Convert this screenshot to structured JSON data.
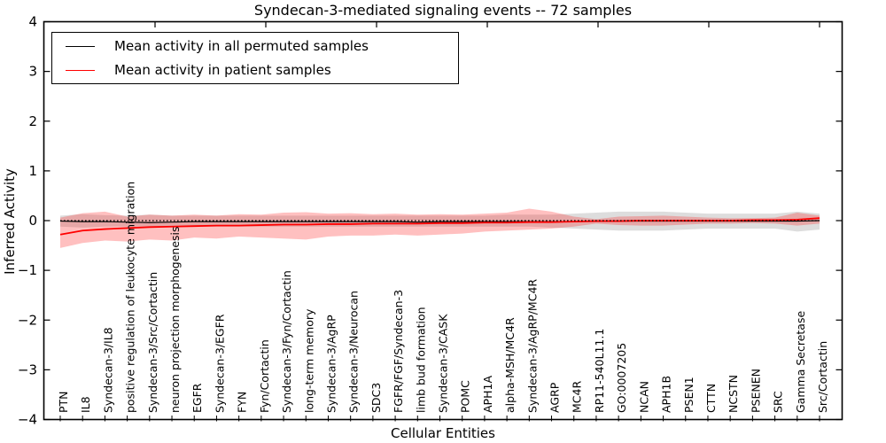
{
  "chart_data": {
    "type": "line",
    "title": "Syndecan-3-mediated signaling events -- 72 samples",
    "xlabel": "Cellular Entities",
    "ylabel": "Inferred Activity",
    "ylim": [
      -4,
      4
    ],
    "grid": false,
    "zero_reference_line": 0,
    "legend": {
      "position": "upper-left",
      "entries": [
        {
          "label": "Mean activity in all permuted samples",
          "color": "#000000"
        },
        {
          "label": "Mean activity in patient samples",
          "color": "#ff0000"
        }
      ]
    },
    "yticks": [
      {
        "value": 4,
        "label": "4"
      },
      {
        "value": 3,
        "label": "3"
      },
      {
        "value": 2,
        "label": "2"
      },
      {
        "value": 1,
        "label": "1"
      },
      {
        "value": 0,
        "label": "0"
      },
      {
        "value": -1,
        "label": "−1"
      },
      {
        "value": -2,
        "label": "−2"
      },
      {
        "value": -3,
        "label": "−3"
      },
      {
        "value": -4,
        "label": "−4"
      }
    ],
    "categories": [
      "PTN",
      "IL8",
      "Syndecan-3/IL8",
      "positive regulation of leukocyte migration",
      "Syndecan-3/Src/Cortactin",
      "neuron projection morphogenesis",
      "EGFR",
      "Syndecan-3/EGFR",
      "FYN",
      "Fyn/Cortactin",
      "Syndecan-3/Fyn/Cortactin",
      "long-term memory",
      "Syndecan-3/AgRP",
      "Syndecan-3/Neurocan",
      "SDC3",
      "FGFR/FGF/Syndecan-3",
      "limb bud formation",
      "Syndecan-3/CASK",
      "POMC",
      "APH1A",
      "alpha-MSH/MC4R",
      "Syndecan-3/AgRP/MC4R",
      "AGRP",
      "MC4R",
      "RP11-540L11.1",
      "GO:0007205",
      "NCAN",
      "APH1B",
      "PSEN1",
      "CTTN",
      "NCSTN",
      "PSENEN",
      "SRC",
      "Gamma Secretase",
      "Src/Cortactin"
    ],
    "series": [
      {
        "name": "Mean activity in all permuted samples",
        "color": "#000000",
        "line_style": "solid",
        "values": [
          -0.01,
          -0.02,
          -0.02,
          -0.03,
          -0.04,
          -0.03,
          -0.02,
          -0.02,
          -0.02,
          -0.02,
          -0.02,
          -0.02,
          -0.02,
          -0.02,
          -0.02,
          -0.02,
          -0.03,
          -0.02,
          -0.02,
          -0.02,
          -0.02,
          -0.02,
          -0.02,
          -0.02,
          -0.01,
          -0.01,
          -0.01,
          -0.01,
          -0.01,
          -0.01,
          -0.01,
          -0.01,
          -0.01,
          -0.01,
          0.0
        ]
      },
      {
        "name": "Mean activity in patient samples",
        "color": "#ff0000",
        "line_style": "solid",
        "values": [
          -0.28,
          -0.2,
          -0.17,
          -0.15,
          -0.13,
          -0.12,
          -0.11,
          -0.1,
          -0.1,
          -0.09,
          -0.08,
          -0.08,
          -0.07,
          -0.07,
          -0.06,
          -0.06,
          -0.06,
          -0.05,
          -0.05,
          -0.04,
          -0.04,
          -0.03,
          -0.03,
          -0.02,
          -0.01,
          -0.01,
          0.0,
          0.0,
          0.0,
          0.0,
          0.0,
          0.01,
          0.01,
          0.02,
          0.05
        ]
      },
      {
        "name": "zero reference",
        "color": "#000000",
        "line_style": "dotted",
        "values": [
          0,
          0,
          0,
          0,
          0,
          0,
          0,
          0,
          0,
          0,
          0,
          0,
          0,
          0,
          0,
          0,
          0,
          0,
          0,
          0,
          0,
          0,
          0,
          0,
          0,
          0,
          0,
          0,
          0,
          0,
          0,
          0,
          0,
          0,
          0
        ]
      }
    ],
    "bands": [
      {
        "name": "permuted samples activity range",
        "color": "#787878",
        "opacity": 0.25,
        "upper": [
          0.1,
          0.13,
          0.11,
          0.1,
          0.12,
          0.1,
          0.1,
          0.1,
          0.1,
          0.1,
          0.1,
          0.1,
          0.1,
          0.1,
          0.1,
          0.1,
          0.1,
          0.1,
          0.1,
          0.1,
          0.12,
          0.12,
          0.12,
          0.14,
          0.16,
          0.18,
          0.18,
          0.18,
          0.16,
          0.14,
          0.14,
          0.14,
          0.14,
          0.18,
          0.14
        ],
        "lower": [
          -0.12,
          -0.14,
          -0.12,
          -0.12,
          -0.12,
          -0.12,
          -0.12,
          -0.12,
          -0.12,
          -0.12,
          -0.12,
          -0.12,
          -0.12,
          -0.12,
          -0.12,
          -0.12,
          -0.12,
          -0.12,
          -0.12,
          -0.12,
          -0.12,
          -0.12,
          -0.14,
          -0.16,
          -0.18,
          -0.2,
          -0.2,
          -0.2,
          -0.18,
          -0.16,
          -0.16,
          -0.16,
          -0.16,
          -0.22,
          -0.18
        ]
      },
      {
        "name": "patient samples activity range",
        "color": "#ff1e1e",
        "opacity": 0.28,
        "upper": [
          0.06,
          0.15,
          0.18,
          0.08,
          0.12,
          0.1,
          0.12,
          0.1,
          0.13,
          0.12,
          0.16,
          0.17,
          0.14,
          0.15,
          0.13,
          0.14,
          0.12,
          0.13,
          0.12,
          0.14,
          0.16,
          0.24,
          0.18,
          0.08,
          0.03,
          0.08,
          0.09,
          0.1,
          0.08,
          0.06,
          0.05,
          0.05,
          0.06,
          0.16,
          0.1
        ],
        "lower": [
          -0.55,
          -0.45,
          -0.4,
          -0.42,
          -0.38,
          -0.4,
          -0.34,
          -0.36,
          -0.32,
          -0.34,
          -0.36,
          -0.38,
          -0.32,
          -0.3,
          -0.3,
          -0.28,
          -0.3,
          -0.28,
          -0.26,
          -0.22,
          -0.2,
          -0.18,
          -0.16,
          -0.12,
          -0.06,
          -0.09,
          -0.1,
          -0.1,
          -0.08,
          -0.06,
          -0.06,
          -0.05,
          -0.06,
          -0.1,
          -0.06
        ]
      }
    ]
  }
}
